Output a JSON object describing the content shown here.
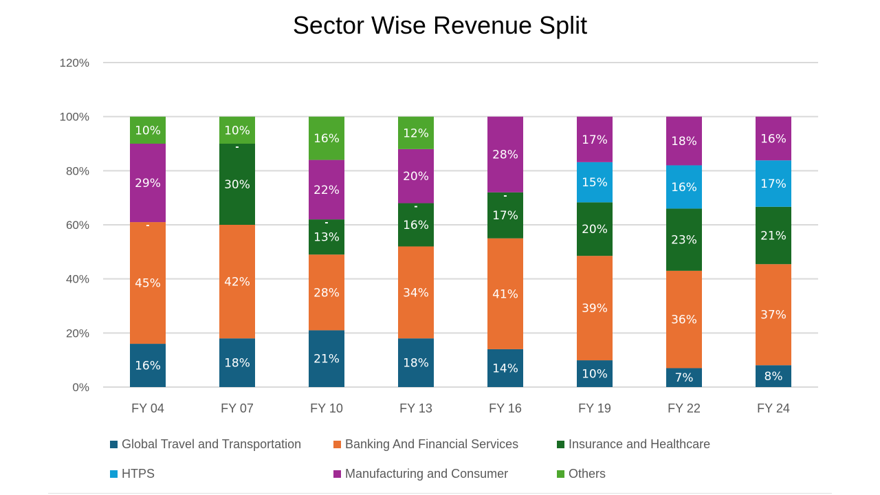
{
  "chart_data": {
    "type": "bar",
    "stacked": true,
    "title": "Sector Wise Revenue Split",
    "xlabel": "",
    "ylabel": "",
    "ylim": [
      0,
      120
    ],
    "yticks": [
      "0%",
      "20%",
      "40%",
      "60%",
      "80%",
      "100%",
      "120%"
    ],
    "grid": true,
    "legend_position": "bottom",
    "categories": [
      "FY 04",
      "FY 07",
      "FY 10",
      "FY 13",
      "FY 16",
      "FY 19",
      "FY 22",
      "FY 24"
    ],
    "series": [
      {
        "name": "Global Travel and Transportation",
        "color": "#156082",
        "values": [
          16,
          18,
          21,
          18,
          14,
          10,
          7,
          8
        ]
      },
      {
        "name": "Banking And Financial Services",
        "color": "#E97132",
        "values": [
          45,
          42,
          28,
          34,
          41,
          39,
          36,
          37
        ]
      },
      {
        "name": "Insurance and Healthcare",
        "color": "#196B24",
        "values": [
          0,
          30,
          13,
          16,
          17,
          20,
          23,
          21
        ]
      },
      {
        "name": "HTPS",
        "color": "#0F9ED5",
        "values": [
          0,
          0,
          0,
          0,
          0,
          15,
          16,
          17
        ]
      },
      {
        "name": "Manufacturing and Consumer",
        "color": "#A02B93",
        "values": [
          29,
          0,
          22,
          20,
          28,
          17,
          18,
          16
        ]
      },
      {
        "name": "Others",
        "color": "#4EA72E",
        "values": [
          10,
          10,
          16,
          12,
          0,
          0,
          0,
          0
        ]
      }
    ],
    "zero_label": "-",
    "zero_label_series": "HTPS"
  }
}
